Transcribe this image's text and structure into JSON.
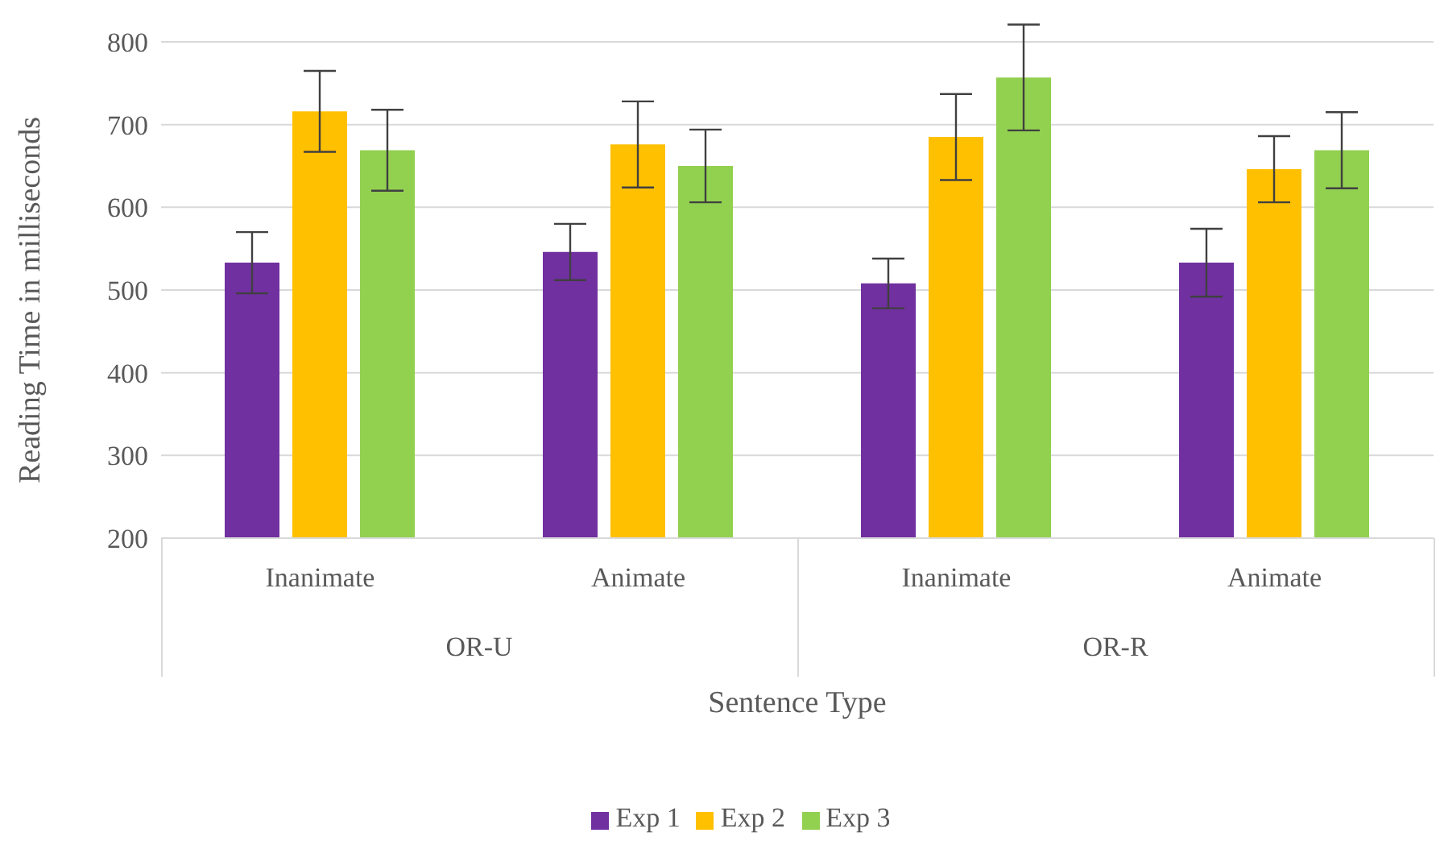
{
  "chart_data": {
    "type": "bar",
    "xlabel": "Sentence Type",
    "ylabel": "Reading Time in milliseconds",
    "categories": [
      "Inanimate",
      "Animate",
      "Inanimate",
      "Animate"
    ],
    "annotations": [
      "OR-U",
      "OR-R"
    ],
    "series": [
      {
        "name": "Exp 1",
        "color": "#7030a0",
        "values": [
          533,
          546,
          508,
          533
        ],
        "errors": [
          37,
          34,
          30,
          41
        ]
      },
      {
        "name": "Exp 2",
        "color": "#ffc000",
        "values": [
          716,
          676,
          685,
          646
        ],
        "errors": [
          49,
          52,
          52,
          40
        ]
      },
      {
        "name": "Exp 3",
        "color": "#92d050",
        "values": [
          669,
          650,
          757,
          669
        ],
        "errors": [
          49,
          44,
          64,
          46
        ]
      }
    ],
    "ylim": [
      200,
      800
    ],
    "yticks": [
      200,
      300,
      400,
      500,
      600,
      700,
      800
    ],
    "grid": "y",
    "legend": "bottom"
  }
}
